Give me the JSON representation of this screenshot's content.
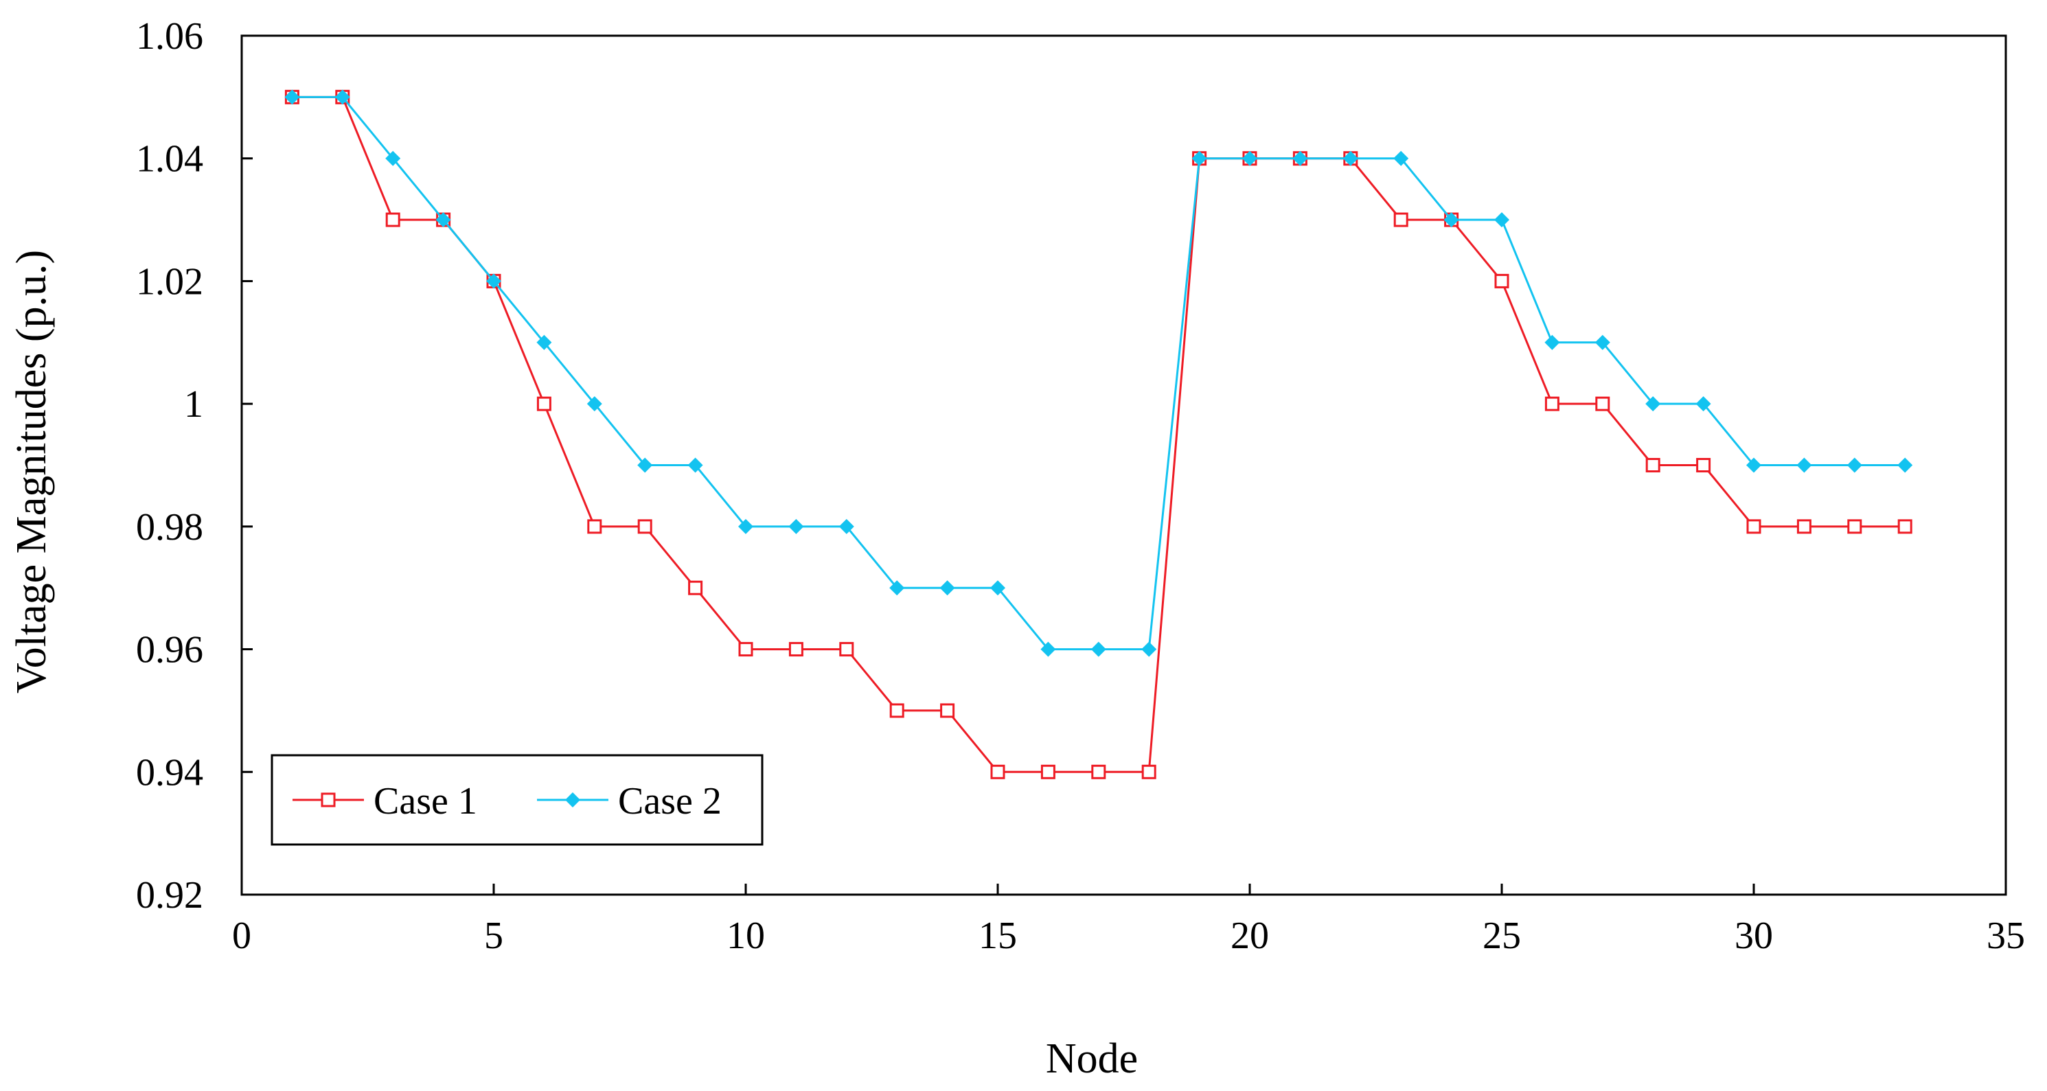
{
  "chart_data": {
    "type": "line",
    "title": "",
    "xlabel": "Node",
    "ylabel": "Voltage Magnitudes (p.u.)",
    "xlim": [
      0,
      35
    ],
    "ylim": [
      0.92,
      1.06
    ],
    "xticks": [
      0,
      5,
      10,
      15,
      20,
      25,
      30,
      35
    ],
    "xtick_labels": [
      "0",
      "5",
      "10",
      "15",
      "20",
      "25",
      "30",
      "35"
    ],
    "yticks": [
      0.92,
      0.94,
      0.96,
      0.98,
      1.0,
      1.02,
      1.04,
      1.06
    ],
    "ytick_labels": [
      "0.92",
      "0.94",
      "0.96",
      "0.98",
      "1",
      "1.02",
      "1.04",
      "1.06"
    ],
    "grid": false,
    "legend_position": "bottom-left",
    "x": [
      1,
      2,
      3,
      4,
      5,
      6,
      7,
      8,
      9,
      10,
      11,
      12,
      13,
      14,
      15,
      16,
      17,
      18,
      19,
      20,
      21,
      22,
      23,
      24,
      25,
      26,
      27,
      28,
      29,
      30,
      31,
      32,
      33
    ],
    "series": [
      {
        "name": "Case 1",
        "color": "#ee1c25",
        "marker": "open-square",
        "values": [
          1.05,
          1.05,
          1.03,
          1.03,
          1.02,
          1.0,
          0.98,
          0.98,
          0.97,
          0.96,
          0.96,
          0.96,
          0.95,
          0.95,
          0.94,
          0.94,
          0.94,
          0.94,
          1.04,
          1.04,
          1.04,
          1.04,
          1.03,
          1.03,
          1.02,
          1.0,
          1.0,
          0.99,
          0.99,
          0.98,
          0.98,
          0.98,
          0.98
        ]
      },
      {
        "name": "Case 2",
        "color": "#13c3f0",
        "marker": "filled-diamond",
        "values": [
          1.05,
          1.05,
          1.04,
          1.03,
          1.02,
          1.01,
          1.0,
          0.99,
          0.99,
          0.98,
          0.98,
          0.98,
          0.97,
          0.97,
          0.97,
          0.96,
          0.96,
          0.96,
          1.04,
          1.04,
          1.04,
          1.04,
          1.04,
          1.03,
          1.03,
          1.01,
          1.01,
          1.0,
          1.0,
          0.99,
          0.99,
          0.99,
          0.99
        ]
      }
    ]
  }
}
